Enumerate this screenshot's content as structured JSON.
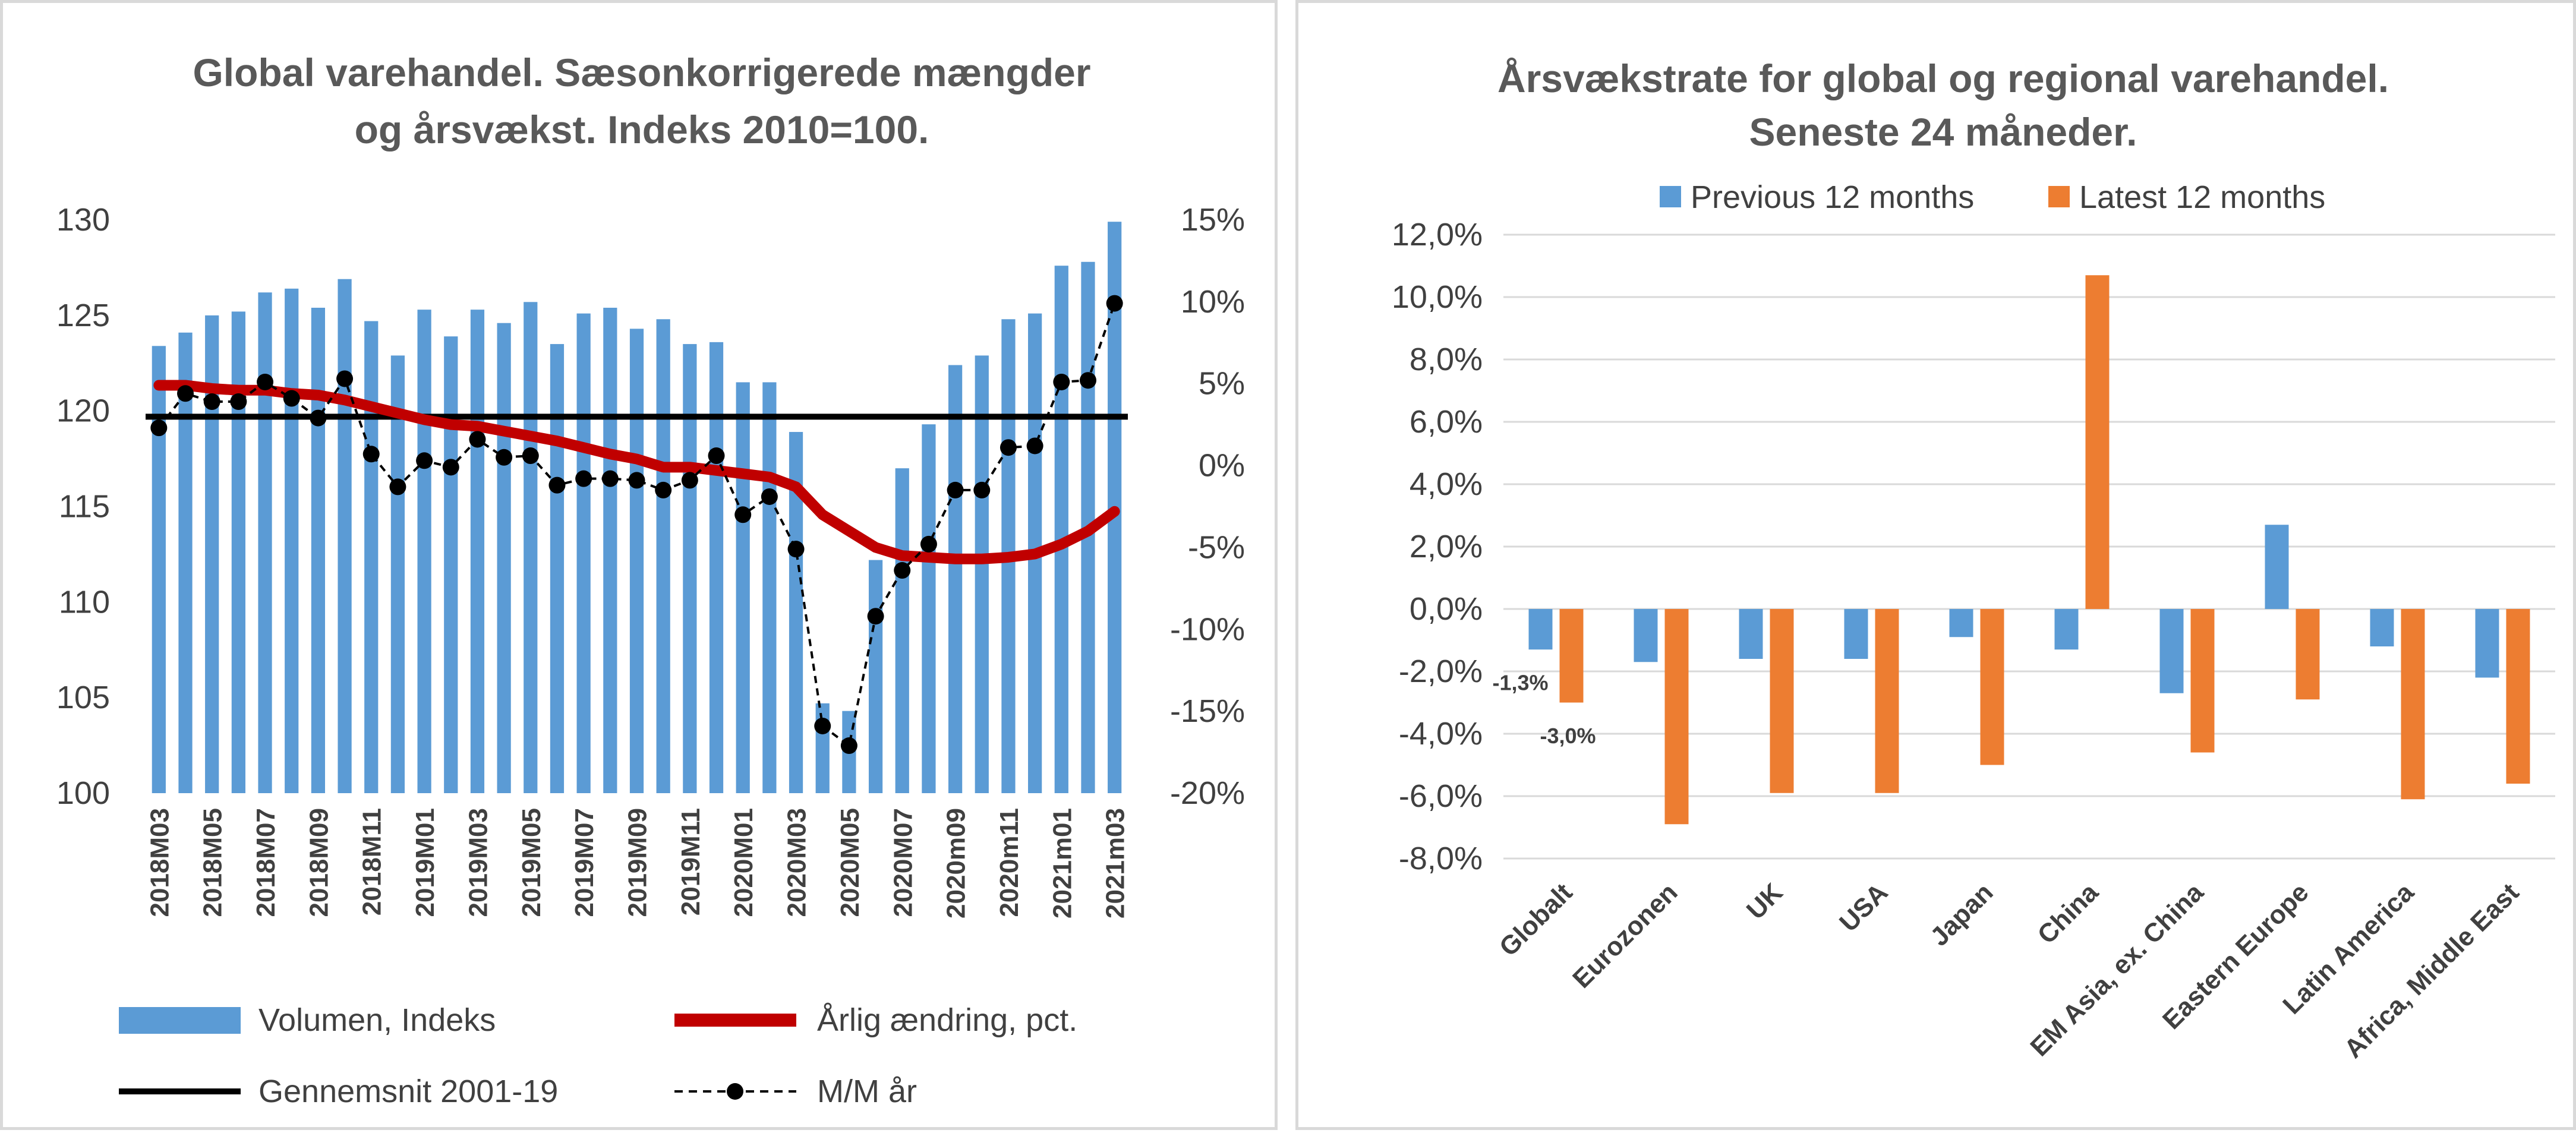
{
  "colors": {
    "bar_blue": "#5b9bd5",
    "line_red": "#c00000",
    "avg_black": "#000000",
    "bar_orange": "#ed7d31",
    "grid": "#d9d9d9",
    "text": "#404040",
    "title": "#595959"
  },
  "charts": [
    {
      "type": "bar+line",
      "title_lines": [
        "Global varehandel. Sæsonkorrigerede mængder",
        "og årsvækst. Indeks 2010=100."
      ],
      "months": [
        "2018M03",
        "2018M04",
        "2018M05",
        "2018M06",
        "2018M07",
        "2018M08",
        "2018M09",
        "2018M10",
        "2018M11",
        "2018M12",
        "2019M01",
        "2019M02",
        "2019M03",
        "2019M04",
        "2019M05",
        "2019M06",
        "2019M07",
        "2019M08",
        "2019M09",
        "2019M10",
        "2019M11",
        "2019M12",
        "2020M01",
        "2020M02",
        "2020M03",
        "2020M04",
        "2020M05",
        "2020M06",
        "2020M07",
        "2020M08",
        "2020m09",
        "2020m10",
        "2020m11",
        "2020m12",
        "2021m01",
        "2021m02",
        "2021m03"
      ],
      "x_tick_labels": [
        "2018M03",
        "2018M05",
        "2018M07",
        "2018M09",
        "2018M11",
        "2019M01",
        "2019M03",
        "2019M05",
        "2019M07",
        "2019M09",
        "2019M11",
        "2020M01",
        "2020M03",
        "2020M05",
        "2020M07",
        "2020m09",
        "2020m11",
        "2021m01",
        "2021m03"
      ],
      "left_axis": {
        "ylim": [
          100,
          130
        ],
        "ticks": [
          "100",
          "105",
          "110",
          "115",
          "120",
          "125",
          "130"
        ]
      },
      "right_axis": {
        "ylim": [
          -20,
          15
        ],
        "ticks": [
          "-20%",
          "-15%",
          "-10%",
          "-5%",
          "0%",
          "5%",
          "10%",
          "15%"
        ]
      },
      "series": [
        {
          "name": "Volumen, Indeks",
          "type": "bar",
          "axis": "left",
          "values": [
            123.4,
            124.1,
            125.0,
            125.2,
            126.2,
            126.4,
            125.4,
            126.9,
            124.7,
            122.9,
            125.3,
            123.9,
            125.3,
            124.6,
            125.7,
            123.5,
            125.1,
            125.4,
            124.3,
            124.8,
            123.5,
            123.6,
            121.5,
            121.5,
            118.9,
            104.7,
            104.3,
            112.2,
            117.0,
            119.3,
            122.4,
            122.9,
            124.8,
            125.1,
            127.6,
            127.8,
            129.9
          ]
        },
        {
          "name": "Årlig ændring, pct.",
          "type": "line",
          "axis": "right",
          "values": [
            4.9,
            4.9,
            4.7,
            4.6,
            4.6,
            4.4,
            4.3,
            4.0,
            3.6,
            3.2,
            2.8,
            2.5,
            2.4,
            2.1,
            1.8,
            1.5,
            1.1,
            0.7,
            0.4,
            -0.1,
            -0.1,
            -0.3,
            -0.5,
            -0.7,
            -1.3,
            -3.0,
            -4.0,
            -5.0,
            -5.5,
            -5.6,
            -5.7,
            -5.7,
            -5.6,
            -5.4,
            -4.8,
            -4.0,
            -2.8
          ]
        },
        {
          "name": "Gennemsnit 2001-19",
          "type": "line",
          "axis": "left",
          "values": [
            119.7
          ]
        },
        {
          "name": "M/M år",
          "type": "line-dashed-markers",
          "axis": "right",
          "values": [
            2.3,
            4.4,
            3.9,
            3.9,
            5.1,
            4.1,
            2.9,
            5.3,
            0.7,
            -1.3,
            0.3,
            -0.1,
            1.6,
            0.5,
            0.6,
            -1.2,
            -0.8,
            -0.8,
            -0.9,
            -1.5,
            -0.9,
            0.6,
            -3.0,
            -1.9,
            -5.1,
            -15.9,
            -17.1,
            -9.2,
            -6.4,
            -4.8,
            -1.5,
            -1.5,
            1.1,
            1.2,
            5.1,
            5.2,
            9.9
          ]
        }
      ],
      "legend": [
        "Volumen, Indeks",
        "Årlig ændring, pct.",
        "Gennemsnit 2001-19",
        "M/M år"
      ]
    },
    {
      "type": "bar",
      "title_lines": [
        "Årsvækstrate for global og regional varehandel.",
        "Seneste 24 måneder."
      ],
      "categories": [
        "Globalt",
        "Eurozonen",
        "UK",
        "USA",
        "Japan",
        "China",
        "EM Asia, ex. China",
        "Eastern Europe",
        "Latin America",
        "Africa, Middle East"
      ],
      "ylim": [
        -8,
        12
      ],
      "y_ticks": [
        "-8,0%",
        "-6,0%",
        "-4,0%",
        "-2,0%",
        "0,0%",
        "2,0%",
        "4,0%",
        "6,0%",
        "8,0%",
        "10,0%",
        "12,0%"
      ],
      "series": [
        {
          "name": "Previous 12 months",
          "values": [
            -1.3,
            -1.7,
            -1.6,
            -1.6,
            -0.9,
            -1.3,
            -2.7,
            2.7,
            -1.2,
            -2.2
          ]
        },
        {
          "name": "Latest 12 months",
          "values": [
            -3.0,
            -6.9,
            -5.9,
            -5.9,
            -5.0,
            10.7,
            -4.6,
            -2.9,
            -6.1,
            -5.6
          ]
        }
      ],
      "data_labels": [
        "-1,3%",
        "-3,0%"
      ]
    }
  ]
}
